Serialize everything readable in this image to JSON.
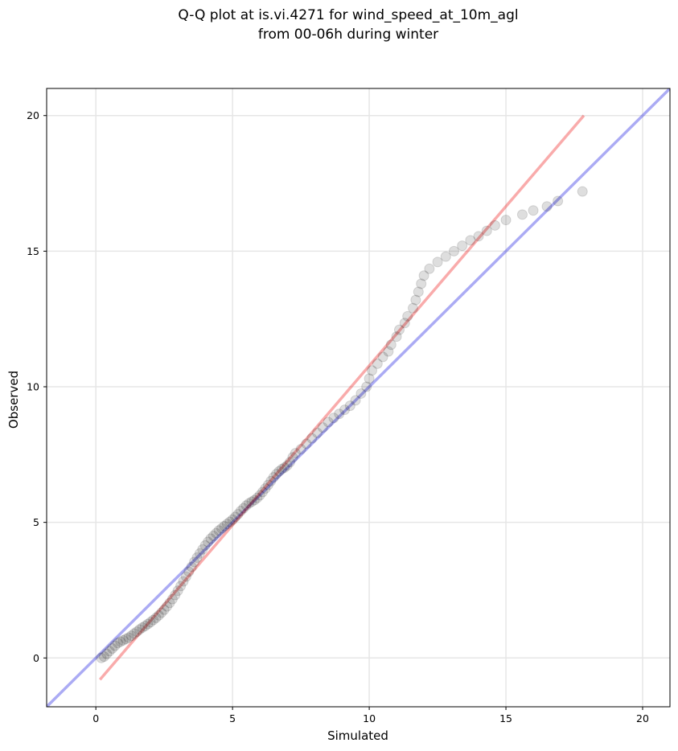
{
  "chart_data": {
    "type": "scatter",
    "title": [
      "Q-Q plot at is.vi.4271 for wind_speed_at_10m_agl",
      "from 00-06h during winter"
    ],
    "xlabel": "Simulated",
    "ylabel": "Observed",
    "xlim": [
      -1.8,
      21.0
    ],
    "ylim": [
      -1.8,
      21.0
    ],
    "x_ticks": [
      0,
      5,
      10,
      15,
      20
    ],
    "y_ticks": [
      0,
      5,
      10,
      15,
      20
    ],
    "grid": true,
    "legend": "none",
    "series": [
      {
        "kind": "quantiles",
        "color": "#000000",
        "points": [
          [
            0.2,
            0.0
          ],
          [
            0.3,
            0.05
          ],
          [
            0.4,
            0.15
          ],
          [
            0.5,
            0.25
          ],
          [
            0.6,
            0.35
          ],
          [
            0.7,
            0.45
          ],
          [
            0.8,
            0.55
          ],
          [
            0.9,
            0.6
          ],
          [
            1.0,
            0.65
          ],
          [
            1.1,
            0.7
          ],
          [
            1.2,
            0.75
          ],
          [
            1.3,
            0.82
          ],
          [
            1.4,
            0.9
          ],
          [
            1.5,
            0.97
          ],
          [
            1.6,
            1.05
          ],
          [
            1.7,
            1.12
          ],
          [
            1.8,
            1.18
          ],
          [
            1.9,
            1.25
          ],
          [
            2.0,
            1.32
          ],
          [
            2.1,
            1.4
          ],
          [
            2.2,
            1.48
          ],
          [
            2.3,
            1.57
          ],
          [
            2.4,
            1.67
          ],
          [
            2.5,
            1.78
          ],
          [
            2.6,
            1.9
          ],
          [
            2.7,
            2.03
          ],
          [
            2.8,
            2.17
          ],
          [
            2.9,
            2.32
          ],
          [
            3.0,
            2.48
          ],
          [
            3.1,
            2.65
          ],
          [
            3.2,
            2.82
          ],
          [
            3.3,
            3.0
          ],
          [
            3.4,
            3.18
          ],
          [
            3.5,
            3.36
          ],
          [
            3.6,
            3.54
          ],
          [
            3.7,
            3.7
          ],
          [
            3.8,
            3.85
          ],
          [
            3.9,
            4.0
          ],
          [
            4.0,
            4.15
          ],
          [
            4.1,
            4.28
          ],
          [
            4.2,
            4.4
          ],
          [
            4.3,
            4.5
          ],
          [
            4.4,
            4.6
          ],
          [
            4.5,
            4.7
          ],
          [
            4.6,
            4.78
          ],
          [
            4.7,
            4.86
          ],
          [
            4.8,
            4.94
          ],
          [
            4.9,
            5.02
          ],
          [
            5.0,
            5.1
          ],
          [
            5.1,
            5.2
          ],
          [
            5.2,
            5.3
          ],
          [
            5.3,
            5.42
          ],
          [
            5.4,
            5.52
          ],
          [
            5.5,
            5.62
          ],
          [
            5.6,
            5.7
          ],
          [
            5.7,
            5.76
          ],
          [
            5.8,
            5.82
          ],
          [
            5.9,
            5.9
          ],
          [
            6.0,
            6.0
          ],
          [
            6.1,
            6.12
          ],
          [
            6.2,
            6.25
          ],
          [
            6.3,
            6.38
          ],
          [
            6.4,
            6.52
          ],
          [
            6.5,
            6.66
          ],
          [
            6.6,
            6.78
          ],
          [
            6.7,
            6.88
          ],
          [
            6.8,
            6.96
          ],
          [
            6.9,
            7.02
          ],
          [
            7.0,
            7.1
          ],
          [
            7.1,
            7.22
          ],
          [
            7.2,
            7.4
          ],
          [
            7.3,
            7.55
          ],
          [
            7.5,
            7.7
          ],
          [
            7.7,
            7.9
          ],
          [
            7.9,
            8.1
          ],
          [
            8.1,
            8.3
          ],
          [
            8.3,
            8.5
          ],
          [
            8.5,
            8.7
          ],
          [
            8.7,
            8.85
          ],
          [
            8.9,
            9.0
          ],
          [
            9.1,
            9.15
          ],
          [
            9.3,
            9.3
          ],
          [
            9.5,
            9.5
          ],
          [
            9.7,
            9.75
          ],
          [
            9.9,
            10.0
          ],
          [
            10.0,
            10.3
          ],
          [
            10.1,
            10.6
          ],
          [
            10.3,
            10.85
          ],
          [
            10.5,
            11.1
          ],
          [
            10.7,
            11.3
          ],
          [
            10.8,
            11.55
          ],
          [
            11.0,
            11.85
          ],
          [
            11.1,
            12.1
          ],
          [
            11.3,
            12.35
          ],
          [
            11.4,
            12.6
          ],
          [
            11.6,
            12.9
          ],
          [
            11.7,
            13.2
          ],
          [
            11.8,
            13.5
          ],
          [
            11.9,
            13.8
          ],
          [
            12.0,
            14.1
          ],
          [
            12.2,
            14.35
          ],
          [
            12.5,
            14.6
          ],
          [
            12.8,
            14.8
          ],
          [
            13.1,
            15.0
          ],
          [
            13.4,
            15.2
          ],
          [
            13.7,
            15.4
          ],
          [
            14.0,
            15.55
          ],
          [
            14.3,
            15.75
          ],
          [
            14.6,
            15.95
          ],
          [
            15.0,
            16.15
          ],
          [
            15.6,
            16.35
          ],
          [
            16.0,
            16.5
          ],
          [
            16.5,
            16.65
          ],
          [
            16.9,
            16.85
          ],
          [
            17.8,
            17.2
          ]
        ]
      },
      {
        "kind": "reference-line",
        "color": "#0000dd",
        "x": [
          -1.8,
          21.0
        ],
        "y": [
          -1.8,
          21.0
        ]
      },
      {
        "kind": "fit-line",
        "color": "#ee0000",
        "x": [
          0.15,
          17.85
        ],
        "y": [
          -0.8,
          20.0
        ]
      }
    ]
  }
}
